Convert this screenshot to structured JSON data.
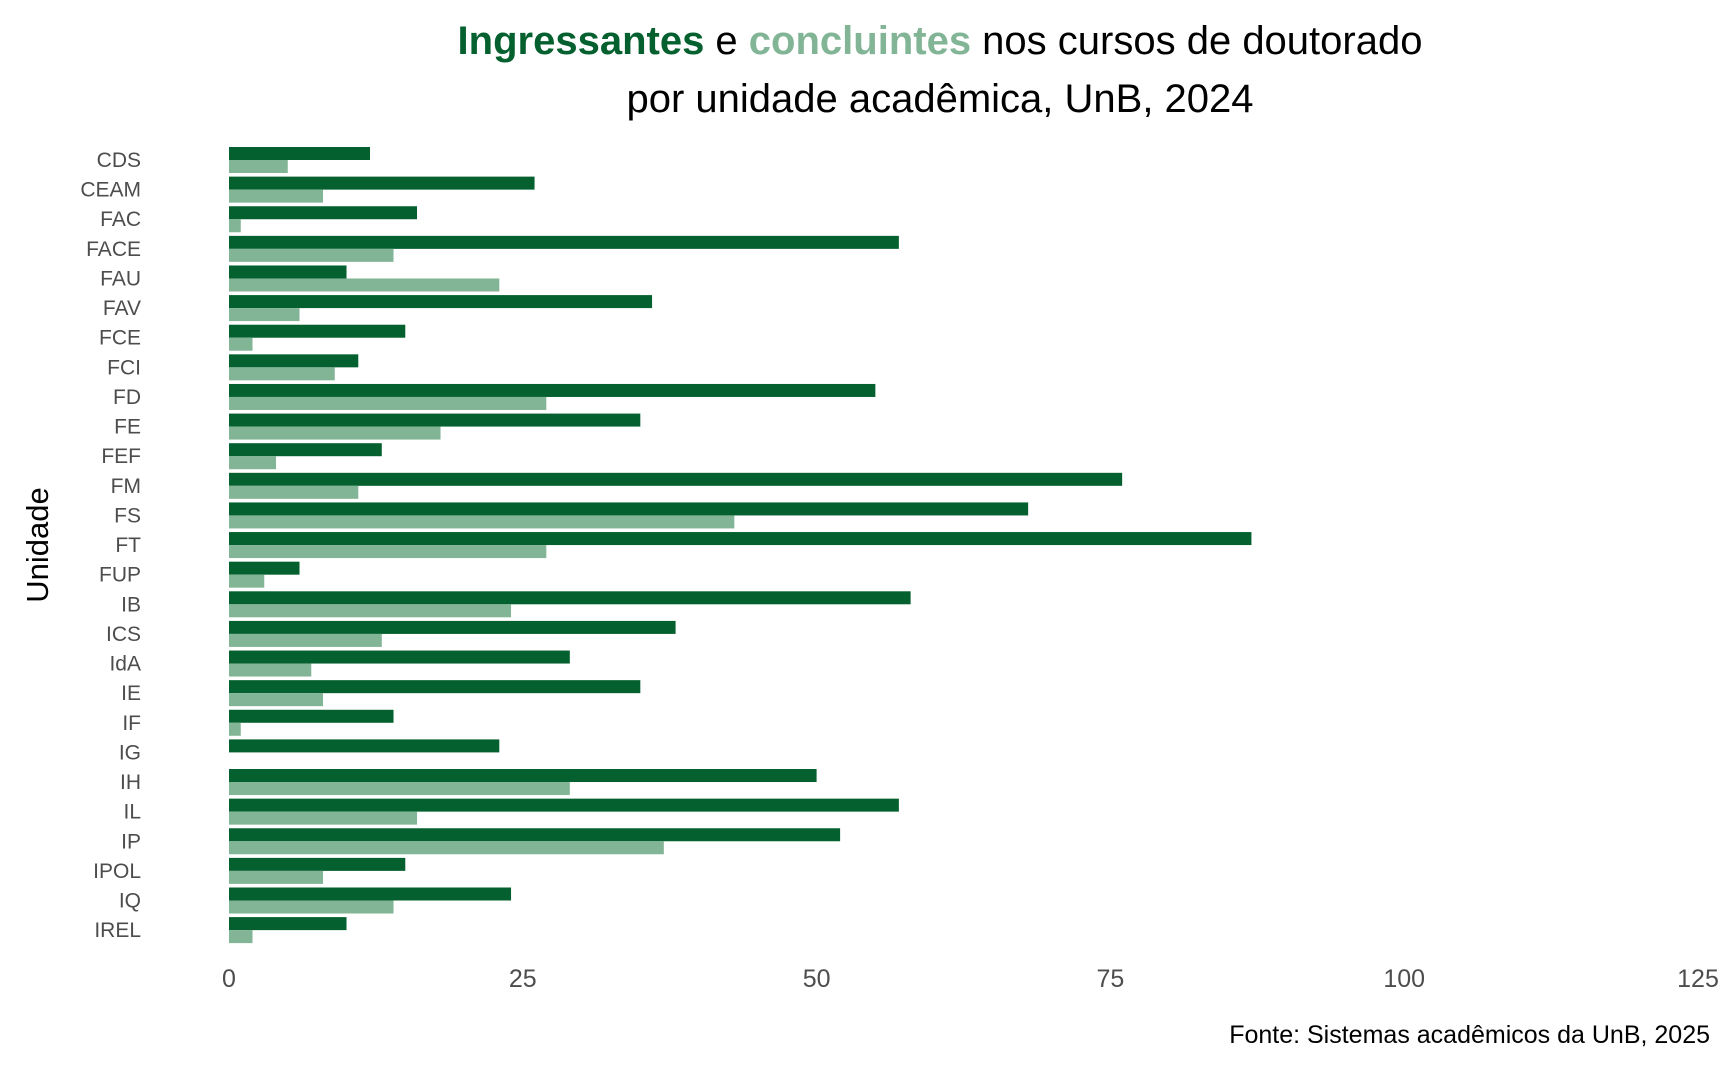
{
  "title": {
    "word1": "Ingressantes",
    "word2": " e ",
    "word3": "concluintes",
    "word4": " nos cursos de doutorado",
    "line2": "por unidade acadêmica, UnB, 2024"
  },
  "caption": "Fonte: Sistemas acadêmicos da UnB, 2025",
  "colors": {
    "ingressantes": "#04602e",
    "concluintes": "#82b496"
  },
  "chart_data": {
    "type": "bar",
    "orientation": "horizontal",
    "title": "Ingressantes e concluintes nos cursos de doutorado por unidade acadêmica, UnB, 2024",
    "xlabel": "",
    "ylabel": "Unidade",
    "xlim": [
      0,
      125
    ],
    "xticks": [
      0,
      25,
      50,
      75,
      100,
      125
    ],
    "grid": false,
    "legend": "none (colored words in title)",
    "categories": [
      "CDS",
      "CEAM",
      "FAC",
      "FACE",
      "FAU",
      "FAV",
      "FCE",
      "FCI",
      "FD",
      "FE",
      "FEF",
      "FM",
      "FS",
      "FT",
      "FUP",
      "IB",
      "ICS",
      "IdA",
      "IE",
      "IF",
      "IG",
      "IH",
      "IL",
      "IP",
      "IPOL",
      "IQ",
      "IREL"
    ],
    "series": [
      {
        "name": "Ingressantes",
        "values": [
          12,
          26,
          16,
          57,
          10,
          36,
          15,
          11,
          55,
          35,
          13,
          76,
          68,
          87,
          6,
          58,
          38,
          29,
          35,
          14,
          23,
          50,
          57,
          52,
          15,
          24,
          10
        ]
      },
      {
        "name": "concluintes",
        "values": [
          5,
          8,
          1,
          14,
          23,
          6,
          2,
          9,
          27,
          18,
          4,
          11,
          43,
          27,
          3,
          24,
          13,
          7,
          8,
          1,
          0,
          29,
          16,
          37,
          8,
          14,
          2
        ]
      }
    ]
  }
}
